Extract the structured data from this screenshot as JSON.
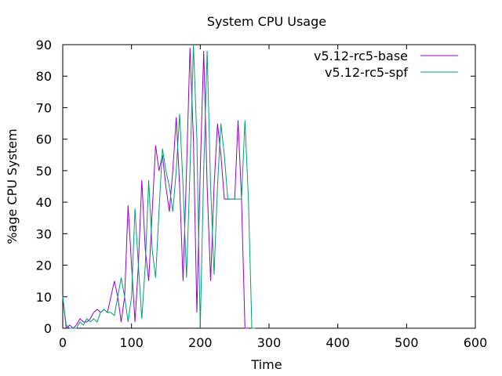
{
  "chart_data": {
    "type": "line",
    "title": "System CPU Usage",
    "xlabel": "Time",
    "ylabel": "%age CPU System",
    "xlim": [
      0,
      600
    ],
    "ylim": [
      0,
      90
    ],
    "xticks": [
      0,
      100,
      200,
      300,
      400,
      500,
      600
    ],
    "yticks": [
      0,
      10,
      20,
      30,
      40,
      50,
      60,
      70,
      80,
      90
    ],
    "grid": false,
    "legend_position": "top-right",
    "series": [
      {
        "name": "v5.12-rc5-base",
        "color": "#9400d3",
        "x": [
          0,
          5,
          10,
          15,
          20,
          25,
          30,
          35,
          40,
          45,
          50,
          55,
          60,
          65,
          70,
          75,
          80,
          85,
          90,
          95,
          100,
          105,
          110,
          115,
          120,
          125,
          130,
          135,
          140,
          145,
          150,
          155,
          160,
          165,
          170,
          175,
          180,
          185,
          190,
          195,
          200,
          205,
          210,
          215,
          220,
          225,
          230,
          235,
          240,
          245,
          250,
          255,
          260,
          265,
          270
        ],
        "y": [
          10,
          0,
          1,
          0,
          1,
          3,
          2,
          2,
          3,
          5,
          6,
          5,
          6,
          5,
          10,
          15,
          10,
          2,
          10,
          39,
          20,
          2,
          20,
          47,
          25,
          15,
          37,
          58,
          50,
          55,
          45,
          37,
          50,
          67,
          45,
          15,
          50,
          89,
          60,
          5,
          50,
          88,
          45,
          15,
          45,
          65,
          55,
          41,
          41,
          41,
          41,
          66,
          41,
          0,
          0
        ]
      },
      {
        "name": "v5.12-rc5-spf",
        "color": "#009e73",
        "x": [
          0,
          5,
          10,
          15,
          20,
          25,
          30,
          35,
          40,
          45,
          50,
          55,
          60,
          65,
          70,
          75,
          80,
          85,
          90,
          95,
          100,
          105,
          110,
          115,
          120,
          125,
          130,
          135,
          140,
          145,
          150,
          155,
          160,
          165,
          170,
          175,
          180,
          185,
          190,
          195,
          200,
          205,
          210,
          215,
          220,
          225,
          230,
          235,
          240,
          245,
          250,
          255,
          260,
          265,
          270,
          275,
          280
        ],
        "y": [
          10,
          1,
          0,
          0,
          0,
          2,
          1,
          3,
          2,
          3,
          2,
          5,
          6,
          5,
          5,
          4,
          10,
          16,
          10,
          2,
          10,
          38,
          20,
          3,
          20,
          47,
          25,
          16,
          37,
          57,
          50,
          45,
          37,
          50,
          68,
          45,
          16,
          50,
          90,
          60,
          0,
          50,
          88,
          45,
          17,
          45,
          65,
          55,
          41,
          41,
          41,
          41,
          41,
          66,
          41,
          0,
          0
        ]
      }
    ]
  }
}
